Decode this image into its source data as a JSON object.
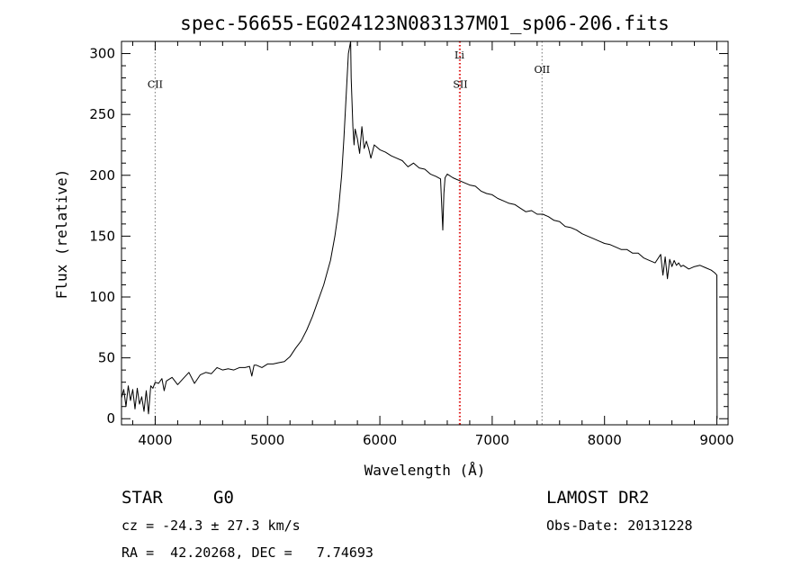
{
  "chart_data": {
    "type": "line",
    "title": "spec-56655-EG024123N083137M01_sp06-206.fits",
    "xlabel": "Wavelength (Å)",
    "ylabel": "Flux (relative)",
    "xlim": [
      3700,
      9100
    ],
    "ylim": [
      -5,
      310
    ],
    "xticks": [
      4000,
      5000,
      6000,
      7000,
      8000,
      9000
    ],
    "yticks": [
      0,
      50,
      100,
      150,
      200,
      250,
      300
    ],
    "series": [
      {
        "name": "flux",
        "x": [
          3700,
          3720,
          3740,
          3760,
          3780,
          3800,
          3820,
          3840,
          3860,
          3880,
          3900,
          3920,
          3940,
          3960,
          3980,
          4000,
          4030,
          4060,
          4080,
          4100,
          4150,
          4200,
          4250,
          4300,
          4350,
          4400,
          4450,
          4500,
          4550,
          4600,
          4650,
          4700,
          4750,
          4800,
          4840,
          4860,
          4880,
          4900,
          4950,
          5000,
          5050,
          5100,
          5150,
          5200,
          5250,
          5300,
          5350,
          5400,
          5450,
          5500,
          5530,
          5560,
          5600,
          5630,
          5660,
          5680,
          5700,
          5720,
          5740,
          5745,
          5760,
          5770,
          5780,
          5800,
          5820,
          5840,
          5860,
          5880,
          5900,
          5920,
          5950,
          6000,
          6050,
          6100,
          6150,
          6200,
          6250,
          6300,
          6350,
          6400,
          6450,
          6500,
          6540,
          6560,
          6570,
          6580,
          6600,
          6650,
          6700,
          6750,
          6800,
          6850,
          6900,
          6950,
          7000,
          7050,
          7100,
          7150,
          7200,
          7250,
          7300,
          7350,
          7400,
          7450,
          7500,
          7550,
          7600,
          7650,
          7700,
          7750,
          7800,
          7850,
          7900,
          7950,
          8000,
          8050,
          8100,
          8150,
          8200,
          8250,
          8300,
          8350,
          8400,
          8450,
          8500,
          8520,
          8540,
          8560,
          8580,
          8600,
          8620,
          8640,
          8660,
          8680,
          8700,
          8750,
          8800,
          8850,
          8900,
          8950,
          8980,
          9000,
          9002
        ],
        "values": [
          17,
          24,
          10,
          27,
          15,
          24,
          8,
          25,
          12,
          18,
          6,
          23,
          4,
          27,
          25,
          30,
          29,
          33,
          23,
          31,
          34,
          28,
          33,
          38,
          29,
          36,
          38,
          37,
          42,
          40,
          41,
          40,
          42,
          42,
          43,
          35,
          44,
          44,
          42,
          45,
          45,
          46,
          47,
          51,
          58,
          64,
          73,
          84,
          97,
          110,
          120,
          130,
          150,
          170,
          200,
          230,
          265,
          300,
          310,
          280,
          240,
          225,
          238,
          230,
          218,
          240,
          222,
          228,
          222,
          214,
          225,
          221,
          219,
          216,
          214,
          212,
          207,
          210,
          206,
          205,
          201,
          199,
          197,
          155,
          185,
          198,
          201,
          198,
          196,
          194,
          192,
          191,
          187,
          185,
          184,
          181,
          179,
          177,
          176,
          173,
          170,
          171,
          168,
          168,
          166,
          163,
          162,
          158,
          157,
          155,
          152,
          150,
          148,
          146,
          144,
          143,
          141,
          139,
          139,
          136,
          136,
          132,
          130,
          128,
          135,
          118,
          133,
          115,
          131,
          125,
          130,
          126,
          128,
          125,
          126,
          123,
          125,
          126,
          124,
          122,
          120,
          118,
          0
        ]
      }
    ],
    "reference_lines": [
      {
        "label": "CII",
        "x": 4000,
        "color": "#888888",
        "label_y": 272
      },
      {
        "label": "Li",
        "x": 6708,
        "color": "#e02020",
        "label_y": 296
      },
      {
        "label": "SII",
        "x": 6716,
        "color": "#e02020",
        "label_y": 272
      },
      {
        "label": "OII",
        "x": 7444,
        "color": "#888888",
        "label_y": 284
      }
    ]
  },
  "info": {
    "obj_class": "STAR",
    "subclass": "G0",
    "survey": "LAMOST DR2",
    "cz": "cz = -24.3 ± 27.3 km/s",
    "obs_date": "Obs-Date: 20131228",
    "coords": "RA =  42.20268, DEC =   7.74693"
  }
}
